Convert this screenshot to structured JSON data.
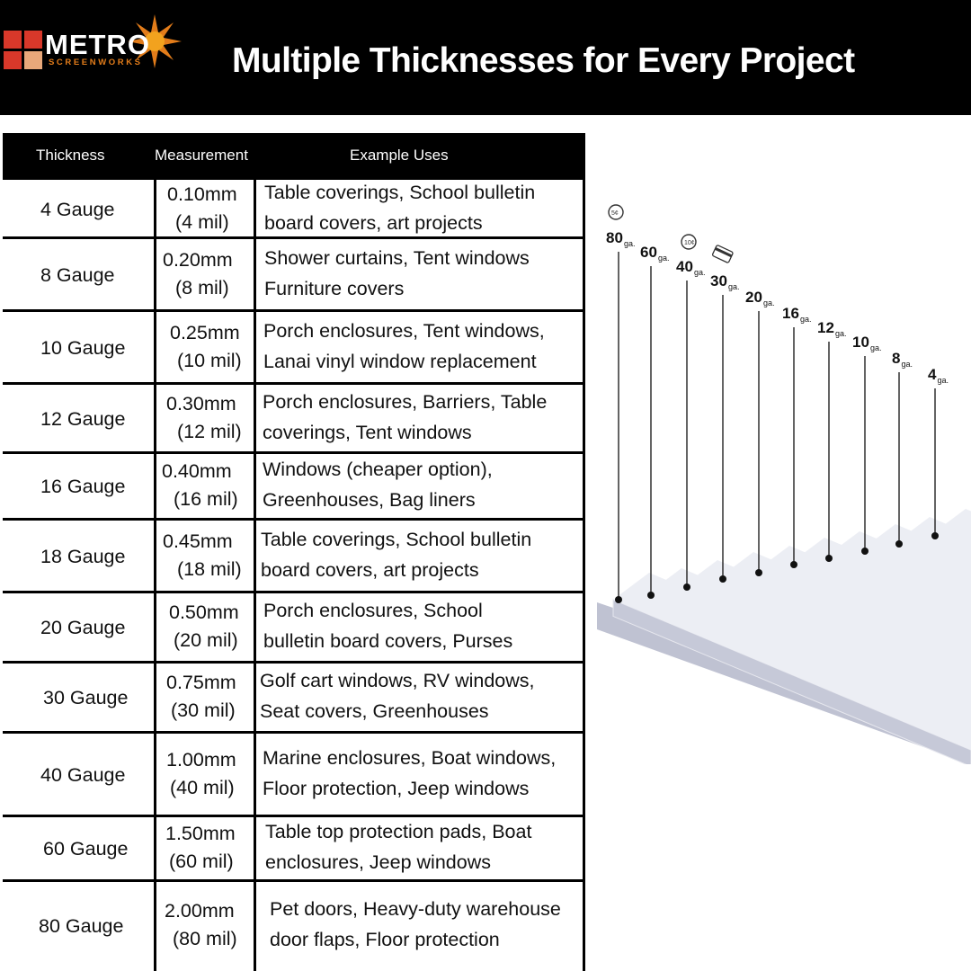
{
  "brand": {
    "name": "METRO",
    "sub": "SCREENWORKS"
  },
  "title": "Multiple Thicknesses for Every Project",
  "table": {
    "headers": [
      "Thickness",
      "Measurement",
      "Example Uses"
    ],
    "rows": [
      {
        "gauge": "4 Gauge",
        "mm": "0.10mm",
        "mil": "(4 mil)",
        "uses": [
          "Table coverings, School bulletin",
          "board covers, art projects"
        ]
      },
      {
        "gauge": "8 Gauge",
        "mm": "0.20mm",
        "mil": "(8 mil)",
        "uses": [
          "Shower curtains,  Tent windows",
          "Furniture covers"
        ]
      },
      {
        "gauge": "10 Gauge",
        "mm": "0.25mm",
        "mil": "(10 mil)",
        "uses": [
          "Porch enclosures, Tent windows,",
          "Lanai vinyl window replacement"
        ]
      },
      {
        "gauge": "12 Gauge",
        "mm": "0.30mm",
        "mil": "(12 mil)",
        "uses": [
          "Porch enclosures, Barriers, Table",
          "coverings, Tent windows"
        ]
      },
      {
        "gauge": "16 Gauge",
        "mm": "0.40mm",
        "mil": "(16 mil)",
        "uses": [
          "Windows (cheaper option),",
          "Greenhouses, Bag liners"
        ]
      },
      {
        "gauge": "18 Gauge",
        "mm": "0.45mm",
        "mil": "(18 mil)",
        "uses": [
          "Table coverings, School bulletin",
          "board covers, art projects"
        ]
      },
      {
        "gauge": "20 Gauge",
        "mm": "0.50mm",
        "mil": "(20 mil)",
        "uses": [
          "Porch enclosures, School",
          "bulletin board covers, Purses"
        ]
      },
      {
        "gauge": "30 Gauge",
        "mm": "0.75mm",
        "mil": "(30 mil)",
        "uses": [
          "Golf cart windows, RV windows,",
          "Seat covers, Greenhouses"
        ]
      },
      {
        "gauge": "40 Gauge",
        "mm": "1.00mm",
        "mil": "(40 mil)",
        "uses": [
          "Marine enclosures, Boat windows,",
          "Floor protection, Jeep windows"
        ]
      },
      {
        "gauge": "60 Gauge",
        "mm": "1.50mm",
        "mil": "(60 mil)",
        "uses": [
          "Table top protection pads, Boat",
          "enclosures, Jeep windows"
        ]
      },
      {
        "gauge": "80 Gauge",
        "mm": "2.00mm",
        "mil": "(80 mil)",
        "uses": [
          "Pet doors, Heavy-duty warehouse",
          "door flaps, Floor protection"
        ]
      }
    ]
  },
  "diagram": {
    "unit": "ga.",
    "gauges": [
      "80",
      "60",
      "40",
      "30",
      "20",
      "16",
      "12",
      "10",
      "8",
      "4"
    ],
    "coin_labels": [
      "5¢",
      "10¢"
    ]
  },
  "colors": {
    "header_bg": "#000000",
    "logo_red": "#d8382a",
    "logo_orange": "#e27c1a",
    "sheet": "#c9cbd8"
  }
}
